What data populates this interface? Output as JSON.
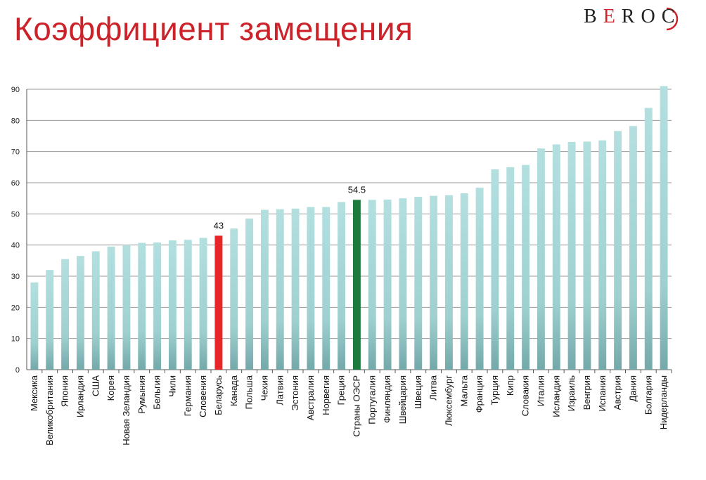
{
  "slide": {
    "title": "Коэффициент замещения",
    "logo": {
      "letters": [
        "B",
        "E",
        "R",
        "O",
        "C"
      ],
      "accent_letter_index": 1
    }
  },
  "colors": {
    "title": "#cc2229",
    "bar_default": "#a6d6d6",
    "bar_highlight_belarus": "#e8262a",
    "bar_highlight_oecd": "#1b7a3c",
    "grid": "#9a9a9a"
  },
  "chart_data": {
    "type": "bar",
    "title": "",
    "xlabel": "",
    "ylabel": "",
    "ylim": [
      0,
      90
    ],
    "yticks": [
      0,
      10,
      20,
      30,
      40,
      50,
      60,
      70,
      80,
      90
    ],
    "grid": true,
    "legend": "none",
    "categories": [
      "Мексика",
      "Великобритания",
      "Япония",
      "Ирландия",
      "США",
      "Корея",
      "Новая Зеландия",
      "Румыния",
      "Бельгия",
      "Чили",
      "Германия",
      "Словения",
      "Беларусь",
      "Канада",
      "Польша",
      "Чехия",
      "Латвия",
      "Эстония",
      "Австралия",
      "Норвегия",
      "Греция",
      "Страны ОЭСР",
      "Португалия",
      "Финляндия",
      "Швейцария",
      "Швеция",
      "Литва",
      "Люксембург",
      "Мальта",
      "Франция",
      "Турция",
      "Кипр",
      "Словакия",
      "Италия",
      "Исландия",
      "Израиль",
      "Венгрия",
      "Испания",
      "Австрия",
      "Дания",
      "Болгария",
      "Нидерланды"
    ],
    "values": [
      28,
      32,
      35.5,
      36.5,
      38,
      39.5,
      40,
      40.7,
      40.8,
      41.5,
      41.7,
      42.3,
      43,
      45.3,
      48.5,
      51.3,
      51.5,
      51.7,
      52.2,
      52.2,
      53.8,
      54.5,
      54.5,
      54.6,
      55,
      55.5,
      55.8,
      56,
      56.6,
      58.4,
      64.3,
      65,
      65.7,
      71,
      72.3,
      73.1,
      73.2,
      73.6,
      76.6,
      78.2,
      84,
      91
    ],
    "highlights": {
      "Беларусь": "bar_highlight_belarus",
      "Страны ОЭСР": "bar_highlight_oecd"
    },
    "data_labels": [
      {
        "category": "Беларусь",
        "text": "43"
      },
      {
        "category": "Страны ОЭСР",
        "text": "54.5"
      }
    ]
  }
}
